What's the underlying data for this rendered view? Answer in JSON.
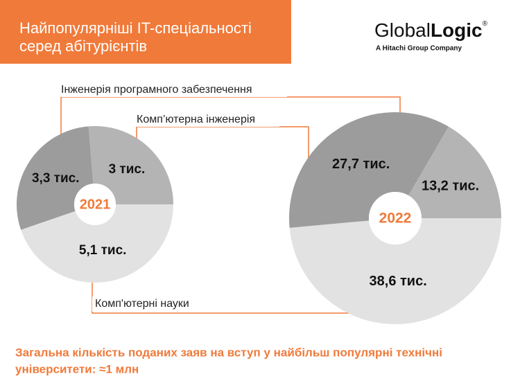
{
  "header": {
    "title": [
      "Найпопулярніші IT-спеціальності",
      "серед абітурієнтів"
    ],
    "logo": {
      "light": "Global",
      "bold": "Logic",
      "mark": "®",
      "sub": "A Hitachi Group Company"
    }
  },
  "chart_data": {
    "type": "donut",
    "categories": [
      "Комп'ютерні науки",
      "Інженерія програмного забезпечення",
      "Комп’ютерна інженерія"
    ],
    "colors": [
      "#e2e2e2",
      "#9c9c9c",
      "#b4b4b4"
    ],
    "series": [
      {
        "name": "2021",
        "values": [
          5.1,
          3.3,
          3
        ],
        "value_labels": [
          "5,1 тис.",
          "3,3 тис.",
          "3 тис."
        ]
      },
      {
        "name": "2022",
        "values": [
          38.6,
          27.7,
          13.2
        ],
        "value_labels": [
          "38,6 тис.",
          "27,7 тис.",
          "13,2 тис."
        ]
      }
    ]
  },
  "footer": {
    "lines": [
      "Загальна кількість поданих заяв на вступ у найбільш популярні технічні",
      "університети: ≈1 млн"
    ]
  }
}
